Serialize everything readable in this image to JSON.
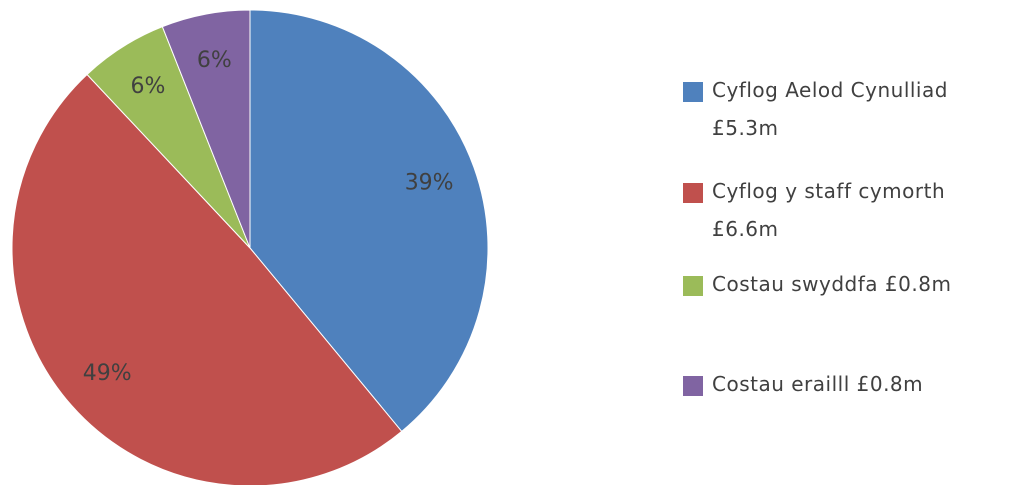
{
  "chart_data": {
    "type": "pie",
    "categories": [
      "Cyflog Aelod Cynulliad £5.3m",
      "Cyflog y staff cymorth £6.6m",
      "Costau swyddfa £0.8m",
      "Costau eraill​l £0.8m"
    ],
    "values": [
      39,
      49,
      6,
      6
    ],
    "value_labels": [
      "39%",
      "49%",
      "6%",
      "6%"
    ],
    "colors": [
      "#4f81bd",
      "#c0504d",
      "#9bbb59",
      "#8064a2"
    ]
  }
}
